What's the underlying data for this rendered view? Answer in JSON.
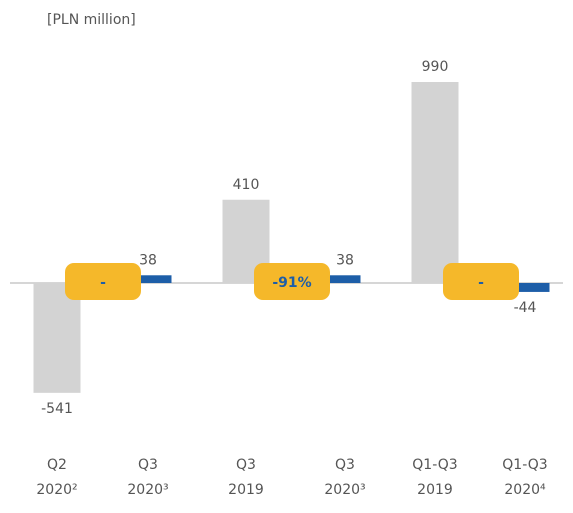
{
  "chart_data": {
    "type": "bar",
    "unit_label": "[PLN million]",
    "categories": [
      [
        "Q2",
        "2020²"
      ],
      [
        "Q3",
        "2020³"
      ],
      [
        "Q3",
        "2019"
      ],
      [
        "Q3",
        "2020³"
      ],
      [
        "Q1-Q3",
        "2019"
      ],
      [
        "Q1-Q3",
        "2020⁴"
      ]
    ],
    "values": [
      -541,
      38,
      410,
      38,
      990,
      -44
    ],
    "colors": [
      "#d3d3d3",
      "#1d5ea8",
      "#d3d3d3",
      "#1d5ea8",
      "#d3d3d3",
      "#1d5ea8"
    ],
    "annotations": [
      "-",
      "-91%",
      "-"
    ],
    "annotation_color": "#f5b82a"
  }
}
